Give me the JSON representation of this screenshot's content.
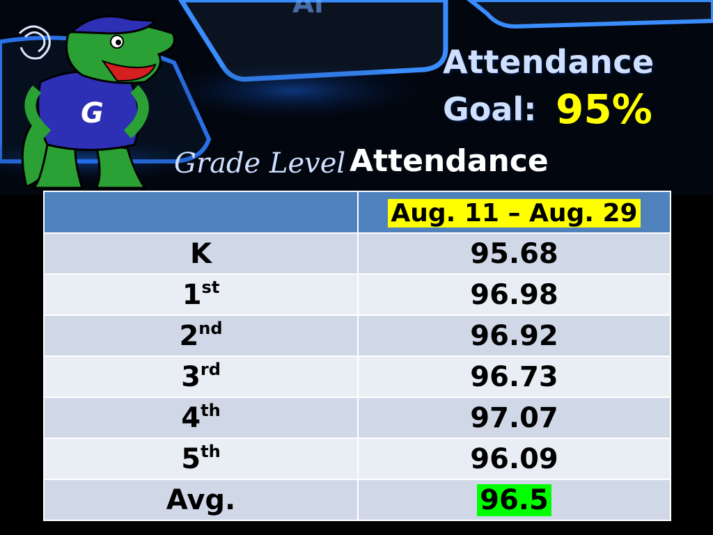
{
  "title": {
    "line1": "Attendance",
    "line2": "Goal:",
    "goal": "95%"
  },
  "subtitle": {
    "script": "Grade Level",
    "bold": "Attendance"
  },
  "table": {
    "header": [
      "",
      "Aug. 11 – Aug. 29"
    ],
    "rows": [
      {
        "grade": "K",
        "suffix": "",
        "value": "95.68"
      },
      {
        "grade": "1",
        "suffix": "st",
        "value": "96.98"
      },
      {
        "grade": "2",
        "suffix": "nd",
        "value": "96.92"
      },
      {
        "grade": "3",
        "suffix": "rd",
        "value": "96.73"
      },
      {
        "grade": "4",
        "suffix": "th",
        "value": "97.07"
      },
      {
        "grade": "5",
        "suffix": "th",
        "value": "96.09"
      }
    ],
    "avg": {
      "label": "Avg.",
      "value": "96.5"
    }
  },
  "mascot": {
    "letter": "G",
    "icon": "alligator-mascot"
  },
  "colors": {
    "header": "#4f81bd",
    "row_odd": "#d0d8e8",
    "row_even": "#e9edf4",
    "goal": "#ffff00",
    "avg_highlight": "#00ff00"
  }
}
